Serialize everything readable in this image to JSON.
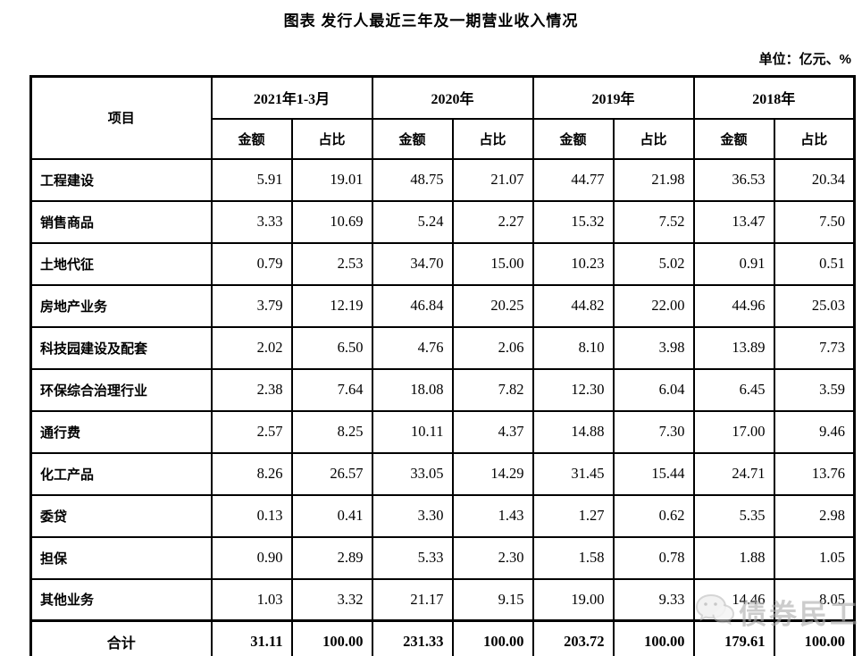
{
  "page": {
    "title": "图表 发行人最近三年及一期营业收入情况",
    "unit_label": "单位：亿元、%"
  },
  "table": {
    "item_header": "项目",
    "col_groups": [
      {
        "label": "2021年1-3月"
      },
      {
        "label": "2020年"
      },
      {
        "label": "2019年"
      },
      {
        "label": "2018年"
      }
    ],
    "sub_headers": [
      "金额",
      "占比"
    ],
    "rows": [
      {
        "item": "工程建设",
        "values": [
          "5.91",
          "19.01",
          "48.75",
          "21.07",
          "44.77",
          "21.98",
          "36.53",
          "20.34"
        ]
      },
      {
        "item": "销售商品",
        "values": [
          "3.33",
          "10.69",
          "5.24",
          "2.27",
          "15.32",
          "7.52",
          "13.47",
          "7.50"
        ]
      },
      {
        "item": "土地代征",
        "values": [
          "0.79",
          "2.53",
          "34.70",
          "15.00",
          "10.23",
          "5.02",
          "0.91",
          "0.51"
        ]
      },
      {
        "item": "房地产业务",
        "values": [
          "3.79",
          "12.19",
          "46.84",
          "20.25",
          "44.82",
          "22.00",
          "44.96",
          "25.03"
        ]
      },
      {
        "item": "科技园建设及配套",
        "values": [
          "2.02",
          "6.50",
          "4.76",
          "2.06",
          "8.10",
          "3.98",
          "13.89",
          "7.73"
        ]
      },
      {
        "item": "环保综合治理行业",
        "values": [
          "2.38",
          "7.64",
          "18.08",
          "7.82",
          "12.30",
          "6.04",
          "6.45",
          "3.59"
        ]
      },
      {
        "item": "通行费",
        "values": [
          "2.57",
          "8.25",
          "10.11",
          "4.37",
          "14.88",
          "7.30",
          "17.00",
          "9.46"
        ]
      },
      {
        "item": "化工产品",
        "values": [
          "8.26",
          "26.57",
          "33.05",
          "14.29",
          "31.45",
          "15.44",
          "24.71",
          "13.76"
        ]
      },
      {
        "item": "委贷",
        "values": [
          "0.13",
          "0.41",
          "3.30",
          "1.43",
          "1.27",
          "0.62",
          "5.35",
          "2.98"
        ]
      },
      {
        "item": "担保",
        "values": [
          "0.90",
          "2.89",
          "5.33",
          "2.30",
          "1.58",
          "0.78",
          "1.88",
          "1.05"
        ]
      },
      {
        "item": "其他业务",
        "values": [
          "1.03",
          "3.32",
          "21.17",
          "9.15",
          "19.00",
          "9.33",
          "14.46",
          "8.05"
        ]
      }
    ],
    "total_row": {
      "item": "合计",
      "values": [
        "31.11",
        "100.00",
        "231.33",
        "100.00",
        "203.72",
        "100.00",
        "179.61",
        "100.00"
      ]
    }
  },
  "watermark": {
    "text": "债券民工",
    "icon": "wechat-icon"
  },
  "colors": {
    "border": "#000000",
    "text": "#000000",
    "watermark": "#adadad"
  }
}
